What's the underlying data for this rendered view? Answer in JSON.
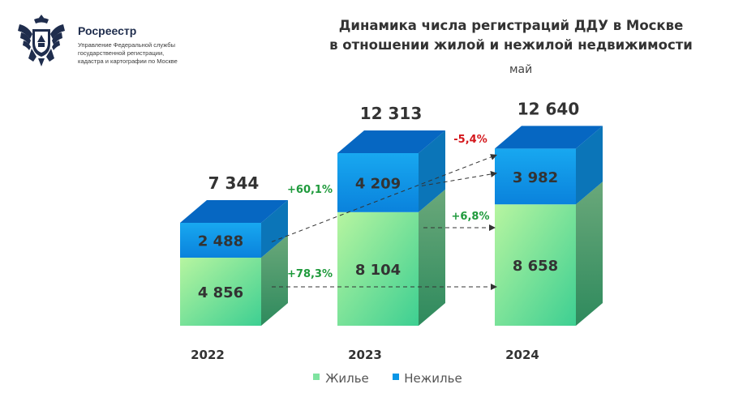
{
  "header": {
    "org_name": "Росреестр",
    "org_lines": [
      "Управление Федеральной службы",
      "государственной регистрации,",
      "кадастра и картографии по Москве"
    ]
  },
  "colors": {
    "residential": "#7fe3a0",
    "nonresidential": "#0a96e6",
    "positive_change": "#1f9a3c",
    "negative_change": "#d4161b",
    "label_text": "#333333"
  },
  "chart_data": {
    "type": "bar",
    "stacked": true,
    "title_lines": [
      "Динамика числа регистраций ДДУ в Москве",
      "в отношении жилой и нежилой недвижимости"
    ],
    "subtitle": "май",
    "categories": [
      "2022",
      "2023",
      "2024"
    ],
    "series": [
      {
        "name": "Жилье",
        "values": [
          4856,
          8104,
          8658
        ],
        "labels": [
          "4 856",
          "8 104",
          "8 658"
        ]
      },
      {
        "name": "Нежилье",
        "values": [
          2488,
          4209,
          3982
        ],
        "labels": [
          "2 488",
          "4 209",
          "3 982"
        ]
      }
    ],
    "totals": [
      7344,
      12313,
      12640
    ],
    "total_labels": [
      "7 344",
      "12 313",
      "12 640"
    ],
    "changes": [
      {
        "label": "+60,1%",
        "type": "positive",
        "series": "Нежилье",
        "from": "2022",
        "to": "2024"
      },
      {
        "label": "+78,3%",
        "type": "positive",
        "series": "Жилье",
        "from": "2022",
        "to": "2024"
      },
      {
        "label": "-5,4%",
        "type": "negative",
        "series": "Нежилье",
        "from": "2023",
        "to": "2024"
      },
      {
        "label": "+6,8%",
        "type": "positive",
        "series": "Жилье",
        "from": "2023",
        "to": "2024"
      }
    ],
    "legend": [
      "Жилье",
      "Нежилье"
    ],
    "legend_position": "bottom",
    "grid": false
  }
}
